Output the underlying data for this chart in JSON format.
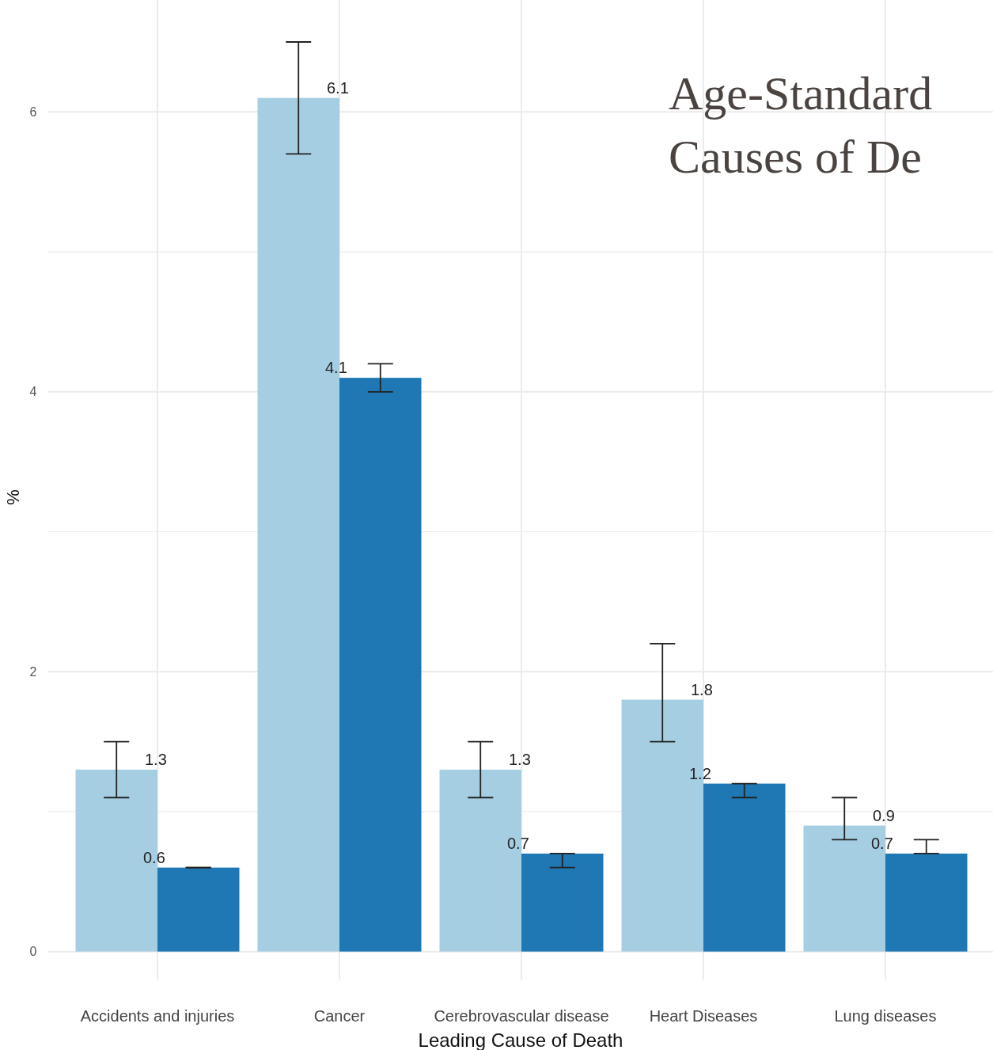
{
  "chart_data": {
    "type": "bar",
    "title": "Age-Standard\nCauses of De",
    "xlabel": "Leading Cause of Death",
    "ylabel": "%",
    "categories": [
      "Accidents and injuries",
      "Cancer",
      "Cerebrovascular disease",
      "Heart Diseases",
      "Lung diseases"
    ],
    "series": [
      {
        "color": "#a6cee3",
        "values": [
          1.3,
          6.1,
          1.3,
          1.8,
          0.9
        ],
        "errors": [
          [
            1.1,
            1.5
          ],
          [
            5.7,
            6.5
          ],
          [
            1.1,
            1.5
          ],
          [
            1.5,
            2.2
          ],
          [
            0.8,
            1.1
          ]
        ]
      },
      {
        "color": "#1f78b4",
        "values": [
          0.6,
          4.1,
          0.7,
          1.2,
          0.7
        ],
        "errors": [
          [
            0.6,
            0.6
          ],
          [
            4.0,
            4.2
          ],
          [
            0.6,
            0.7
          ],
          [
            1.1,
            1.2
          ],
          [
            0.7,
            0.8
          ]
        ]
      }
    ],
    "ylim": [
      -0.2,
      6.8
    ],
    "yticks": [
      0,
      {
        "value": 1,
        "label": null
      },
      2,
      {
        "value": 3,
        "label": null
      },
      4,
      {
        "value": 5,
        "label": null
      },
      6
    ],
    "grid": true,
    "data_labels": true
  }
}
